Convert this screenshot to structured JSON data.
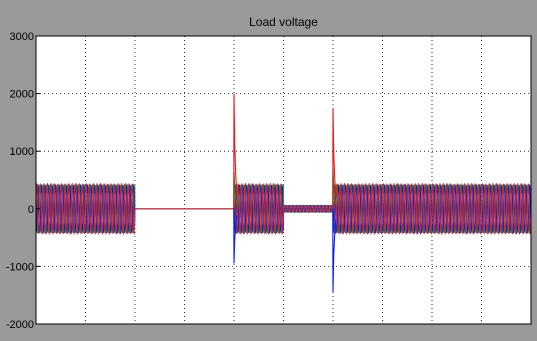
{
  "window": {
    "title": "Load voltage"
  },
  "colors": {
    "background": "#9a9a9a",
    "axes_bg": "#ffffff",
    "grid": "#000000",
    "phase_a": "#e8181b",
    "phase_b": "#0a1cf0",
    "phase_c": "#0a9a1a"
  },
  "chart_data": {
    "type": "line",
    "title": "Load voltage",
    "xlabel": "",
    "ylabel": "",
    "xlim": [
      0,
      10
    ],
    "ylim": [
      -2000,
      3000
    ],
    "yticks": [
      -2000,
      -1000,
      0,
      1000,
      2000,
      3000
    ],
    "ytick_labels": [
      "-2000",
      "-1000",
      "0",
      "1000",
      "2000",
      "3000"
    ],
    "xticks": [
      0,
      1,
      2,
      3,
      4,
      5,
      6,
      7,
      8,
      9,
      10
    ],
    "xtick_labels": [],
    "grid": true,
    "segments": [
      {
        "x_start": 0.0,
        "x_end": 2.0,
        "amplitude": 420,
        "state": "normal"
      },
      {
        "x_start": 2.0,
        "x_end": 4.0,
        "amplitude": 0,
        "state": "outage"
      },
      {
        "x_start": 4.0,
        "x_end": 5.0,
        "amplitude": 420,
        "state": "normal"
      },
      {
        "x_start": 5.0,
        "x_end": 6.0,
        "amplitude": 60,
        "state": "sag"
      },
      {
        "x_start": 6.0,
        "x_end": 10.0,
        "amplitude": 420,
        "state": "normal"
      }
    ],
    "transients": [
      {
        "x": 4.0,
        "phase_a_peak": 2000,
        "phase_b_peak": -950,
        "phase_c_peak": 650
      },
      {
        "x": 6.0,
        "phase_a_peak": 1750,
        "phase_b_peak": -1450,
        "phase_c_peak": 700
      }
    ],
    "series": [
      {
        "color_key": "phase_a",
        "phase_deg": 0
      },
      {
        "color_key": "phase_b",
        "phase_deg": -120
      },
      {
        "color_key": "phase_c",
        "phase_deg": 120
      }
    ]
  }
}
